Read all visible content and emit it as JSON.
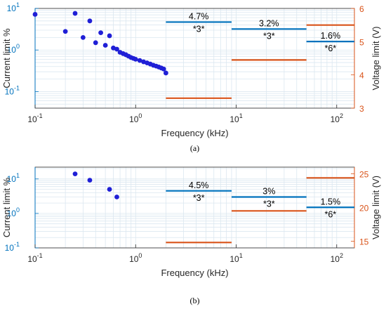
{
  "chart_data": [
    {
      "type": "scatter",
      "caption": "(a)",
      "xlabel": "Frequency (kHz)",
      "ylabel_left": "Current limit %",
      "ylabel_right": "Voltage limit (V)",
      "x_scale": "log",
      "xlim": [
        0.1,
        150
      ],
      "x_ticks": [
        0.1,
        1,
        10,
        100
      ],
      "x_tick_labels": [
        [
          "10",
          "-1"
        ],
        [
          "10",
          "0"
        ],
        [
          "10",
          "1"
        ],
        [
          "10",
          "2"
        ]
      ],
      "yl_scale": "log",
      "yl_lim": [
        0.04,
        10
      ],
      "yl_ticks": [
        0.1,
        1,
        10
      ],
      "yl_tick_labels": [
        [
          "10",
          "-1"
        ],
        [
          "10",
          "0"
        ],
        [
          "10",
          "1"
        ]
      ],
      "yr_scale": "linear",
      "yr_lim": [
        3,
        6
      ],
      "yr_ticks": [
        3,
        4,
        5,
        6
      ],
      "grid": true,
      "colors": {
        "current": "#0072BD",
        "voltage": "#D95319",
        "points": "#1f1fd6"
      },
      "series": [
        {
          "kind": "points",
          "axis": "left",
          "points": [
            [
              0.1,
              7.2
            ],
            [
              0.2,
              2.8
            ],
            [
              0.25,
              7.6
            ],
            [
              0.3,
              2.0
            ],
            [
              0.35,
              5.0
            ],
            [
              0.4,
              1.5
            ],
            [
              0.45,
              2.6
            ],
            [
              0.5,
              1.3
            ],
            [
              0.55,
              2.2
            ],
            [
              0.6,
              1.12
            ],
            [
              0.65,
              1.05
            ],
            [
              0.7,
              0.88
            ],
            [
              0.75,
              0.82
            ],
            [
              0.8,
              0.77
            ],
            [
              0.85,
              0.71
            ],
            [
              0.9,
              0.66
            ],
            [
              0.95,
              0.63
            ],
            [
              1.0,
              0.6
            ],
            [
              1.1,
              0.56
            ],
            [
              1.2,
              0.52
            ],
            [
              1.3,
              0.49
            ],
            [
              1.4,
              0.46
            ],
            [
              1.5,
              0.43
            ],
            [
              1.6,
              0.41
            ],
            [
              1.7,
              0.39
            ],
            [
              1.8,
              0.37
            ],
            [
              1.9,
              0.35
            ],
            [
              2.0,
              0.28
            ]
          ]
        },
        {
          "kind": "segments",
          "axis": "left",
          "segments": [
            [
              2,
              9,
              4.7
            ],
            [
              9,
              50,
              3.2
            ],
            [
              50,
              150,
              1.6
            ]
          ],
          "labels": [
            "4.7%",
            "3.2%",
            "1.6%"
          ],
          "sublabels": [
            "*3*",
            "*3*",
            "*6*"
          ]
        },
        {
          "kind": "segments",
          "axis": "right",
          "segments": [
            [
              2,
              9,
              3.3
            ],
            [
              9,
              50,
              4.45
            ],
            [
              50,
              150,
              5.5
            ]
          ]
        }
      ]
    },
    {
      "type": "scatter",
      "caption": "(b)",
      "xlabel": "Frequency (kHz)",
      "ylabel_left": "Current limit %",
      "ylabel_right": "Voltage limit (V)",
      "x_scale": "log",
      "xlim": [
        0.1,
        150
      ],
      "x_ticks": [
        0.1,
        1,
        10,
        100
      ],
      "x_tick_labels": [
        [
          "10",
          "-1"
        ],
        [
          "10",
          "0"
        ],
        [
          "10",
          "1"
        ],
        [
          "10",
          "2"
        ]
      ],
      "yl_scale": "log",
      "yl_lim": [
        0.1,
        22
      ],
      "yl_ticks": [
        0.1,
        1,
        10
      ],
      "yl_tick_labels": [
        [
          "10",
          "-1"
        ],
        [
          "10",
          "0"
        ],
        [
          "10",
          "1"
        ]
      ],
      "yr_scale": "linear",
      "yr_lim": [
        14,
        26
      ],
      "yr_ticks": [
        15,
        20,
        25
      ],
      "grid": true,
      "colors": {
        "current": "#0072BD",
        "voltage": "#D95319",
        "points": "#1f1fd6"
      },
      "series": [
        {
          "kind": "points",
          "axis": "left",
          "points": [
            [
              0.25,
              14
            ],
            [
              0.35,
              9.2
            ],
            [
              0.55,
              5.0
            ],
            [
              0.65,
              3.0
            ]
          ]
        },
        {
          "kind": "segments",
          "axis": "left",
          "segments": [
            [
              2,
              9,
              4.5
            ],
            [
              9,
              50,
              3.0
            ],
            [
              50,
              150,
              1.5
            ]
          ],
          "labels": [
            "4.5%",
            "3%",
            "1.5%"
          ],
          "sublabels": [
            "*3*",
            "*3*",
            "*6*"
          ]
        },
        {
          "kind": "segments",
          "axis": "right",
          "segments": [
            [
              2,
              9,
              14.8
            ],
            [
              9,
              50,
              19.5
            ],
            [
              50,
              150,
              24.4
            ]
          ]
        }
      ]
    }
  ]
}
